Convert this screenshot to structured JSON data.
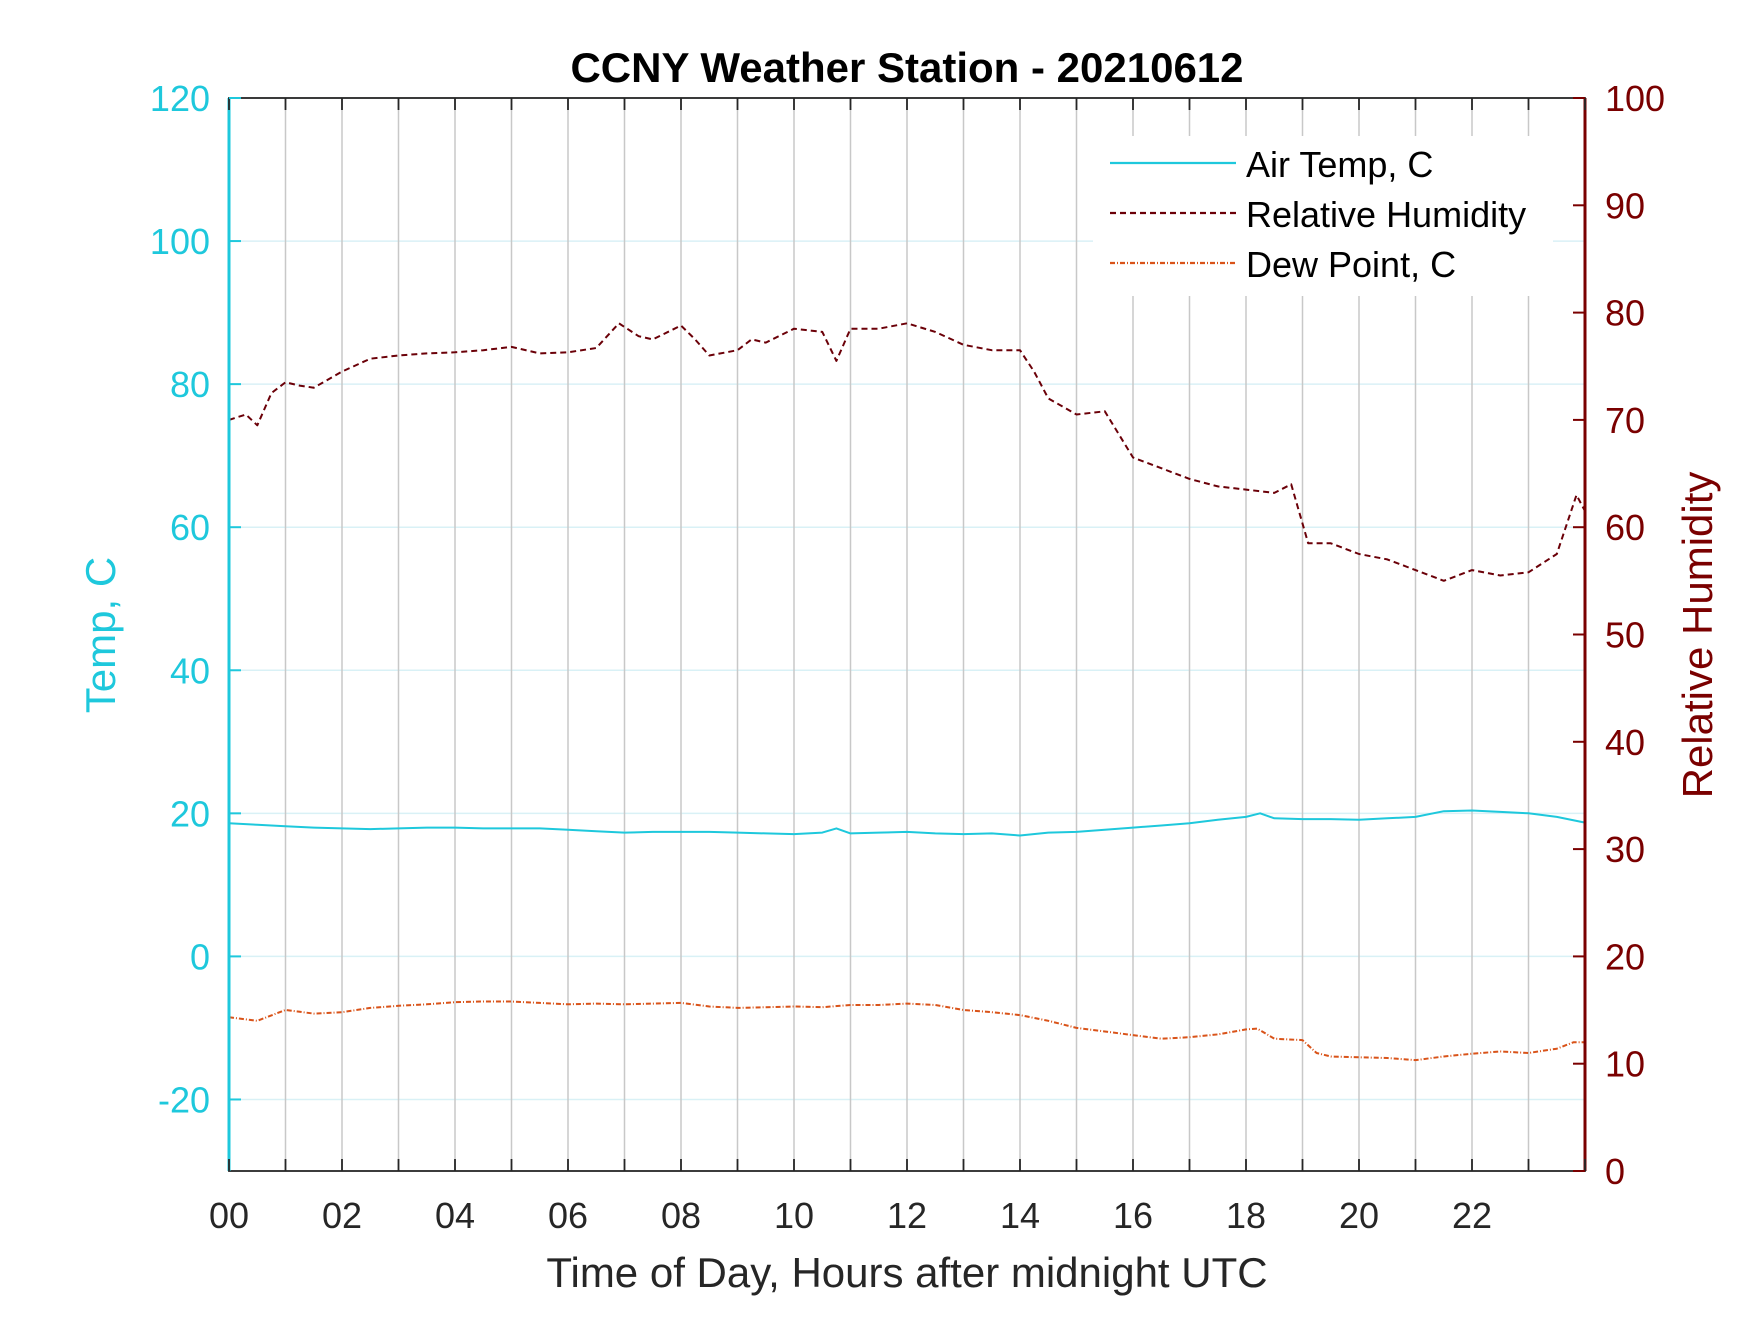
{
  "chart_data": {
    "type": "line",
    "title": "CCNY Weather Station - 20210612",
    "xlabel": "Time of Day, Hours after midnight UTC",
    "ylabel_left": "Temp, C",
    "ylabel_right": "Relative Humidity",
    "xlim": [
      0,
      24
    ],
    "ylim_left": [
      -30,
      120
    ],
    "ylim_right": [
      0,
      100
    ],
    "x_ticks": [
      0,
      2,
      4,
      6,
      8,
      10,
      12,
      14,
      16,
      18,
      20,
      22
    ],
    "x_tick_labels": [
      "00",
      "02",
      "04",
      "06",
      "08",
      "10",
      "12",
      "14",
      "16",
      "18",
      "20",
      "22"
    ],
    "y_left_ticks": [
      -20,
      0,
      20,
      40,
      60,
      80,
      100,
      120
    ],
    "y_left_tick_labels": [
      "-20",
      "0",
      "20",
      "40",
      "60",
      "80",
      "100",
      "120"
    ],
    "y_right_ticks": [
      0,
      10,
      20,
      30,
      40,
      50,
      60,
      70,
      80,
      90,
      100
    ],
    "y_right_tick_labels": [
      "0",
      "10",
      "20",
      "30",
      "40",
      "50",
      "60",
      "70",
      "80",
      "90",
      "100"
    ],
    "grid": true,
    "legend_position": "top-right",
    "colors": {
      "temp_axis": "#1ec8dc",
      "rh_axis": "#7a0000",
      "air_temp": "#1ec8dc",
      "humidity": "#6b0008",
      "dew_point": "#d95319",
      "vgrid": "#c8c8c8",
      "hgrid": "#d9f1f6"
    },
    "series": [
      {
        "name": "Air Temp, C",
        "axis": "left",
        "style": "solid",
        "x": [
          0,
          0.5,
          1,
          1.5,
          2,
          2.5,
          3,
          3.5,
          4,
          4.5,
          5,
          5.5,
          6,
          6.5,
          7,
          7.5,
          8,
          8.5,
          9,
          9.5,
          10,
          10.5,
          10.75,
          11,
          11.5,
          12,
          12.5,
          13,
          13.5,
          14,
          14.5,
          15,
          15.5,
          16,
          16.5,
          17,
          17.5,
          18,
          18.25,
          18.5,
          19,
          19.5,
          20,
          20.5,
          21,
          21.5,
          22,
          22.5,
          23,
          23.5,
          24
        ],
        "values": [
          18.6,
          18.4,
          18.2,
          18.0,
          17.9,
          17.8,
          17.9,
          18.0,
          18.0,
          17.9,
          17.9,
          17.9,
          17.7,
          17.5,
          17.3,
          17.4,
          17.4,
          17.4,
          17.3,
          17.2,
          17.1,
          17.3,
          17.9,
          17.2,
          17.3,
          17.4,
          17.2,
          17.1,
          17.2,
          16.9,
          17.3,
          17.4,
          17.7,
          18.0,
          18.3,
          18.6,
          19.1,
          19.5,
          20.0,
          19.3,
          19.2,
          19.2,
          19.1,
          19.3,
          19.5,
          20.3,
          20.4,
          20.2,
          20.0,
          19.5,
          18.7
        ]
      },
      {
        "name": "Relative Humidity",
        "axis": "right",
        "style": "dashed",
        "x": [
          0,
          0.3,
          0.5,
          0.75,
          1,
          1.25,
          1.5,
          2,
          2.5,
          3,
          3.5,
          4,
          4.5,
          5,
          5.5,
          6,
          6.5,
          6.9,
          7.25,
          7.5,
          8,
          8.25,
          8.5,
          9,
          9.25,
          9.5,
          10,
          10.5,
          10.75,
          11,
          11.5,
          12,
          12.5,
          13,
          13.5,
          14,
          14.25,
          14.5,
          15,
          15.5,
          16,
          16.5,
          17,
          17.5,
          18,
          18.5,
          18.8,
          19.1,
          19.5,
          20,
          20.5,
          21,
          21.5,
          22,
          22.5,
          23,
          23.5,
          23.85,
          24
        ],
        "values": [
          70.0,
          70.5,
          69.5,
          72.5,
          73.5,
          73.2,
          73.0,
          74.5,
          75.7,
          76.0,
          76.2,
          76.3,
          76.5,
          76.8,
          76.2,
          76.3,
          76.7,
          79.0,
          77.8,
          77.5,
          78.8,
          77.5,
          76.0,
          76.5,
          77.5,
          77.2,
          78.5,
          78.2,
          75.5,
          78.5,
          78.5,
          79.0,
          78.2,
          77.0,
          76.5,
          76.5,
          74.5,
          72.0,
          70.5,
          70.8,
          66.5,
          65.5,
          64.5,
          63.8,
          63.5,
          63.2,
          64.0,
          58.5,
          58.5,
          57.5,
          57.0,
          56.0,
          55.0,
          56.0,
          55.5,
          55.8,
          57.5,
          63.0,
          61.5
        ]
      },
      {
        "name": "Dew Point, C",
        "axis": "left",
        "style": "dashdot",
        "x": [
          0,
          0.5,
          1,
          1.5,
          2,
          2.5,
          3,
          3.5,
          4,
          4.5,
          5,
          5.5,
          6,
          6.5,
          7,
          7.5,
          8,
          8.5,
          9,
          9.5,
          10,
          10.5,
          11,
          11.5,
          12,
          12.5,
          13,
          13.5,
          14,
          14.5,
          15,
          15.5,
          16,
          16.5,
          17,
          17.5,
          18,
          18.2,
          18.5,
          19,
          19.25,
          19.5,
          20,
          20.5,
          21,
          21.5,
          22,
          22.5,
          23,
          23.5,
          23.8,
          24
        ],
        "values": [
          -8.5,
          -9.0,
          -7.5,
          -8.0,
          -7.8,
          -7.2,
          -6.9,
          -6.7,
          -6.4,
          -6.3,
          -6.3,
          -6.5,
          -6.7,
          -6.6,
          -6.7,
          -6.6,
          -6.5,
          -7.0,
          -7.2,
          -7.1,
          -7.0,
          -7.1,
          -6.8,
          -6.8,
          -6.6,
          -6.8,
          -7.5,
          -7.8,
          -8.2,
          -9.0,
          -10.0,
          -10.5,
          -11.0,
          -11.5,
          -11.3,
          -10.9,
          -10.2,
          -10.1,
          -11.5,
          -11.7,
          -13.5,
          -14.0,
          -14.1,
          -14.2,
          -14.5,
          -14.0,
          -13.6,
          -13.3,
          -13.5,
          -12.9,
          -12.0,
          -12.0
        ]
      }
    ]
  }
}
